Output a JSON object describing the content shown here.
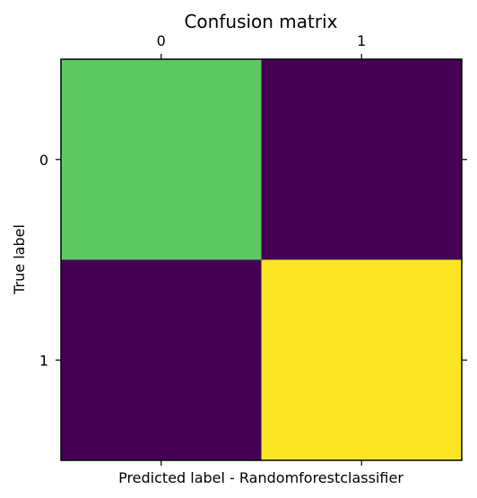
{
  "chart_data": {
    "type": "heatmap",
    "title": "Confusion matrix",
    "xlabel": "Predicted label - Randomforestclassifier",
    "ylabel": "True label",
    "x_categories": [
      "0",
      "1"
    ],
    "y_categories": [
      "0",
      "1"
    ],
    "colormap": "viridis",
    "colors": [
      [
        "#5ec962",
        "#440154"
      ],
      [
        "#440154",
        "#fde725"
      ]
    ],
    "x_tick_position": "top",
    "grid": false,
    "legend": "none",
    "colorbar": false
  }
}
